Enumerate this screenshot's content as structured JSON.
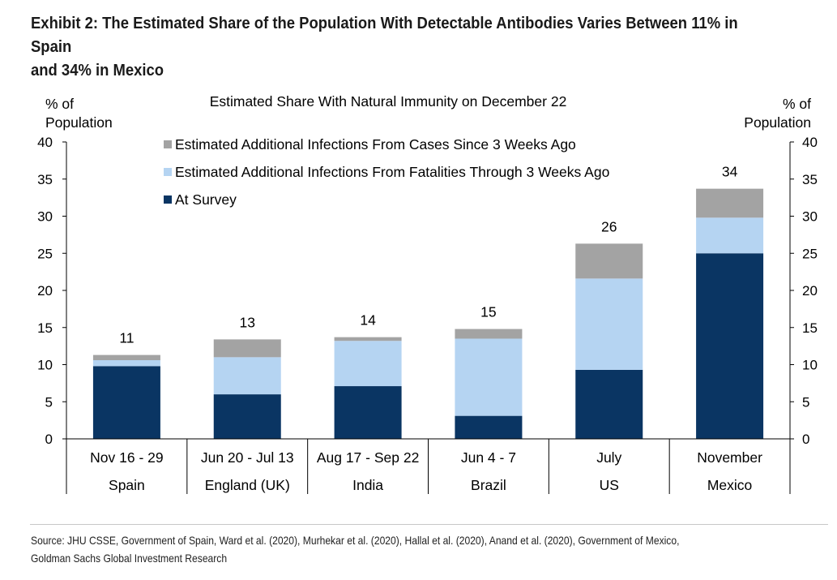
{
  "exhibit": {
    "title_line1": "Exhibit 2: The Estimated Share of the Population With Detectable Antibodies Varies Between 11% in Spain",
    "title_line2": "and 34% in Mexico"
  },
  "source": {
    "line1": "Source: JHU CSSE, Government of Spain, Ward et al. (2020), Murhekar et al. (2020), Hallal et al. (2020), Anand et al. (2020), Government of Mexico,",
    "line2": "Goldman Sachs Global Investment Research"
  },
  "chart_data": {
    "type": "bar",
    "stacked": true,
    "title": "Estimated Share With Natural Immunity on December 22",
    "ylabel_left": [
      "% of",
      "Population"
    ],
    "ylabel_right": [
      "% of",
      "Population"
    ],
    "ylim": [
      0,
      40
    ],
    "yticks": [
      "0",
      "5",
      "10",
      "15",
      "20",
      "25",
      "30",
      "35",
      "40"
    ],
    "categories": [
      {
        "dates": "Nov 16 - 29",
        "country": "Spain"
      },
      {
        "dates": "Jun 20 - Jul 13",
        "country": "England (UK)"
      },
      {
        "dates": "Aug 17 - Sep 22",
        "country": "India"
      },
      {
        "dates": "Jun 4 - 7",
        "country": "Brazil"
      },
      {
        "dates": "July",
        "country": "US"
      },
      {
        "dates": "November",
        "country": "Mexico"
      }
    ],
    "series": [
      {
        "name": "At Survey",
        "color": "#0a3563",
        "values": [
          9.8,
          6.0,
          7.1,
          3.1,
          9.3,
          25.0
        ]
      },
      {
        "name": "Estimated Additional Infections From Fatalities Through 3 Weeks Ago",
        "color": "#b5d4f2",
        "values": [
          0.8,
          5.0,
          6.1,
          10.4,
          12.3,
          4.8
        ]
      },
      {
        "name": "Estimated Additional Infections From Cases Since 3 Weeks Ago",
        "color": "#a3a3a3",
        "values": [
          0.7,
          2.4,
          0.5,
          1.3,
          4.7,
          3.9
        ]
      }
    ],
    "totals": [
      "11",
      "13",
      "14",
      "15",
      "26",
      "34"
    ],
    "legend": [
      "Estimated Additional Infections From Cases Since 3 Weeks Ago",
      "Estimated Additional Infections From Fatalities Through 3 Weeks Ago",
      "At Survey"
    ],
    "legend_colors": [
      "#a3a3a3",
      "#b5d4f2",
      "#0a3563"
    ],
    "legend_position": "top-left",
    "grid": false
  }
}
